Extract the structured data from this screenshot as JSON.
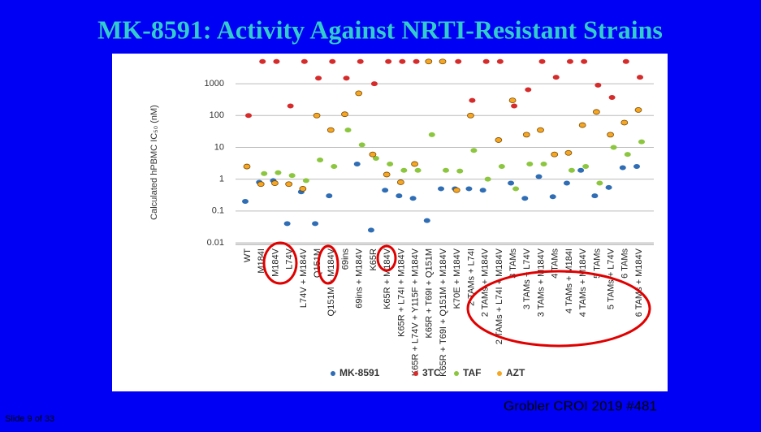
{
  "slide": {
    "title": "MK-8591:  Activity Against NRTI-Resistant Strains",
    "footer_left": "Slide 9 of 33",
    "footer_right": "Grobler CROI 2019 #481"
  },
  "chart_data": {
    "type": "dot",
    "y_label": "Calculated hPBMC IC₅₀ (nM)",
    "log_y": true,
    "grid": true,
    "ylim": [
      0.01,
      7000
    ],
    "yticks": [
      0.01,
      0.1,
      1,
      10,
      100,
      1000
    ],
    "categories": [
      "WT",
      "M184I",
      "M184V",
      "L74V",
      "L74V + M184V",
      "Q151M",
      "Q151M + M184V",
      "69ins",
      "69ins + M184V",
      "K65R",
      "K65R + M184V",
      "K65R + L74I + M184V",
      "K65R + L74V + Y115F + M184V",
      "K65R + T69I + Q151M",
      "K65R + T69I + Q151M + M184V",
      "K70E + M184V",
      "2 TAMs + L74I",
      "2 TAMs + M184V",
      "2 TAMs + L74I + M184V",
      "3 TAMs",
      "3 TAMs + L74V",
      "3 TAMs + M184V",
      "4 TAMs",
      "4 TAMs + M184I",
      "4 TAMs + M184V",
      "5 TAMs",
      "5 TAMs + L74V",
      "6 TAMs",
      "6 TAMs + M184V"
    ],
    "legend": "bottom",
    "series": [
      {
        "name": "MK-8591",
        "color": "#2f6db5",
        "values": [
          0.2,
          0.8,
          0.9,
          0.04,
          0.4,
          0.04,
          0.3,
          null,
          3,
          0.025,
          0.45,
          0.3,
          0.25,
          0.05,
          0.5,
          0.5,
          0.5,
          0.45,
          null,
          0.75,
          0.25,
          1.2,
          0.28,
          0.75,
          1.9,
          0.3,
          0.55,
          2.3,
          2.5
        ]
      },
      {
        "name": "3TC",
        "color": "#d62b2b",
        "values": [
          100,
          5000,
          5000,
          200,
          5000,
          1500,
          5000,
          1500,
          5000,
          1000,
          5000,
          5000,
          5000,
          null,
          null,
          5000,
          300,
          5000,
          5000,
          200,
          650,
          5000,
          1600,
          5000,
          5000,
          900,
          370,
          5000,
          1600
        ]
      },
      {
        "name": "TAF",
        "color": "#8cc63f",
        "values": [
          null,
          1.5,
          1.6,
          1.3,
          0.9,
          4,
          2.5,
          35,
          12,
          4.5,
          3,
          1.9,
          1.9,
          25,
          1.9,
          1.8,
          8,
          1,
          2.5,
          0.5,
          3,
          3,
          null,
          1.9,
          2.5,
          0.75,
          10,
          6,
          15
        ]
      },
      {
        "name": "AZT",
        "color": "#f5a623",
        "values": [
          2.5,
          0.7,
          0.75,
          0.7,
          0.5,
          100,
          35,
          110,
          500,
          6,
          1.4,
          0.8,
          3,
          5000,
          5000,
          0.45,
          100,
          null,
          17,
          300,
          25,
          35,
          6,
          6.7,
          50,
          130,
          25,
          60,
          150
        ]
      }
    ]
  }
}
